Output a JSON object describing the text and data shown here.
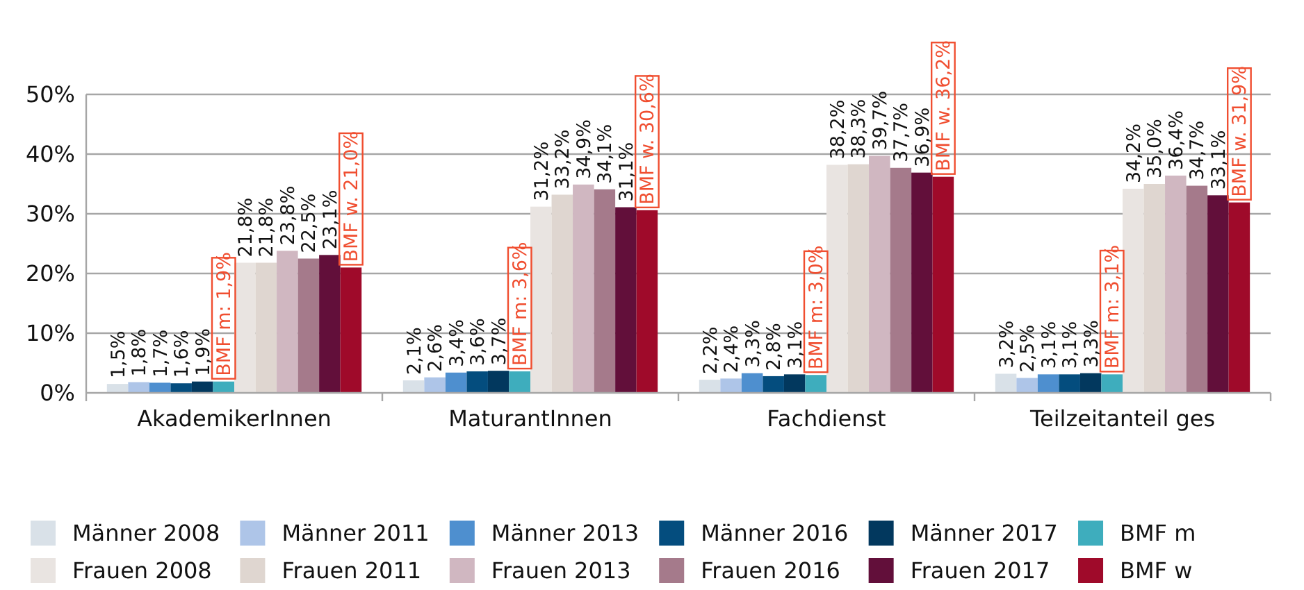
{
  "chart_data": {
    "type": "bar",
    "categories": [
      "AkademikerInnen",
      "MaturantInnen",
      "Fachdienst",
      "Teilzeitanteil ges"
    ],
    "ylim": [
      0,
      50
    ],
    "yticks": [
      {
        "value": 0,
        "label": "0%"
      },
      {
        "value": 10,
        "label": "10%"
      },
      {
        "value": 20,
        "label": "20%"
      },
      {
        "value": 30,
        "label": "30%"
      },
      {
        "value": 40,
        "label": "40%"
      },
      {
        "value": 50,
        "label": "50%"
      }
    ],
    "grid": "y",
    "legend": "bottom",
    "series": [
      {
        "name": "Männer 2008",
        "color": "#d9e1e8",
        "values": [
          1.5,
          2.1,
          2.2,
          3.2
        ],
        "value_labels": [
          "1,5%",
          "2,1%",
          "2,2%",
          "3,2%"
        ]
      },
      {
        "name": "Männer 2011",
        "color": "#aec5e8",
        "values": [
          1.8,
          2.6,
          2.4,
          2.5
        ],
        "value_labels": [
          "1,8%",
          "2,6%",
          "2,4%",
          "2,5%"
        ]
      },
      {
        "name": "Männer 2013",
        "color": "#4e8fcf",
        "values": [
          1.7,
          3.4,
          3.3,
          3.1
        ],
        "value_labels": [
          "1,7%",
          "3,4%",
          "3,3%",
          "3,1%"
        ]
      },
      {
        "name": "Männer 2016",
        "color": "#044d7e",
        "values": [
          1.6,
          3.6,
          2.8,
          3.1
        ],
        "value_labels": [
          "1,6%",
          "3,6%",
          "2,8%",
          "3,1%"
        ]
      },
      {
        "name": "Männer 2017",
        "color": "#02385e",
        "values": [
          1.9,
          3.7,
          3.1,
          3.3
        ],
        "value_labels": [
          "1,9%",
          "3,7%",
          "3,1%",
          "3,3%"
        ]
      },
      {
        "name": "BMF m",
        "color": "#3eadbd",
        "values": [
          1.9,
          3.6,
          3.0,
          3.1
        ],
        "value_labels": [
          "BMF m: 1,9%",
          "BMF m: 3,6%",
          "BMF m: 3,0%",
          "BMF m: 3,1%"
        ]
      },
      {
        "name": "Frauen 2008",
        "color": "#e9e4e1",
        "values": [
          21.8,
          31.2,
          38.2,
          34.2
        ],
        "value_labels": [
          "21,8%",
          "31,2%",
          "38,2%",
          "34,2%"
        ]
      },
      {
        "name": "Frauen 2011",
        "color": "#dfd6d0",
        "values": [
          21.8,
          33.2,
          38.3,
          35.0
        ],
        "value_labels": [
          "21,8%",
          "33,2%",
          "38,3%",
          "35,0%"
        ]
      },
      {
        "name": "Frauen 2013",
        "color": "#d0b7c1",
        "values": [
          23.8,
          34.9,
          39.7,
          36.4
        ],
        "value_labels": [
          "23,8%",
          "34,9%",
          "39,7%",
          "36,4%"
        ]
      },
      {
        "name": "Frauen 2016",
        "color": "#a57a8b",
        "values": [
          22.5,
          34.1,
          37.7,
          34.7
        ],
        "value_labels": [
          "22,5%",
          "34,1%",
          "37,7%",
          "34,7%"
        ]
      },
      {
        "name": "Frauen 2017",
        "color": "#620f3a",
        "values": [
          23.1,
          31.1,
          36.9,
          33.1
        ],
        "value_labels": [
          "23,1%",
          "31,1%",
          "36,9%",
          "33,1%"
        ]
      },
      {
        "name": "BMF w",
        "color": "#9f0a2a",
        "values": [
          21.0,
          30.6,
          36.2,
          31.9
        ],
        "value_labels": [
          "BMF w. 21,0%",
          "BMF w. 30,6%",
          "BMF w. 36,2%",
          "BMF w. 31,9%"
        ]
      }
    ]
  }
}
